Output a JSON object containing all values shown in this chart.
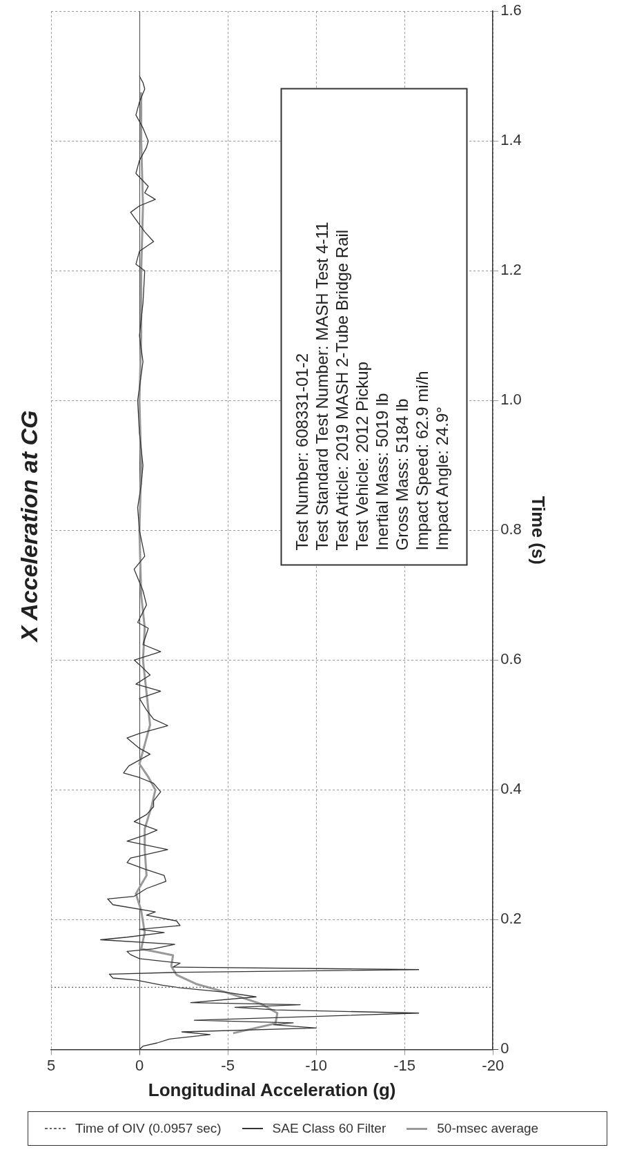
{
  "chart_data": {
    "type": "line",
    "title": "X Acceleration at CG",
    "xlabel": "Longitudinal Acceleration (g)",
    "ylabel": "Time (s)",
    "ylim": [
      0,
      1.6
    ],
    "yticks": [
      0,
      0.2,
      0.4,
      0.6,
      0.8,
      {
        "value": 1,
        "label": "1.0"
      },
      1.2,
      1.4,
      1.6
    ],
    "xlim": [
      5,
      -20
    ],
    "xticks": [
      5,
      0,
      -5,
      -10,
      -15,
      -20
    ],
    "grid": true,
    "legend": "bottom",
    "marker": "none",
    "series": [
      {
        "name": "SAE Class 60 Filter",
        "color": "#333333",
        "line_style": "solid",
        "values": [
          0,
          0.005,
          0.01,
          0.016,
          0.023,
          0.027,
          0.033,
          0.038,
          0.041,
          0.045,
          0.056,
          0.061,
          0.065,
          0.069,
          0.072,
          0.081,
          0.088,
          0.095,
          0.099,
          0.107,
          0.11,
          0.116,
          0.119,
          0.123,
          0.127,
          0.133,
          0.14,
          0.146,
          0.151,
          0.155,
          0.162,
          0.169,
          0.173,
          0.18,
          0.185,
          0.191,
          0.198,
          0.207,
          0.212,
          0.223,
          0.232,
          0.236,
          0.248,
          0.259,
          0.268,
          0.278,
          0.288,
          0.295,
          0.308,
          0.321,
          0.331,
          0.338,
          0.351,
          0.362,
          0.374,
          0.383,
          0.397,
          0.41,
          0.419,
          0.426,
          0.437,
          0.455,
          0.464,
          0.48,
          0.487,
          0.499,
          0.509,
          0.523,
          0.541,
          0.552,
          0.563,
          0.577,
          0.593,
          0.6,
          0.613,
          0.624,
          0.649,
          0.658,
          0.685,
          0.707,
          0.74,
          0.76,
          0.8,
          0.835,
          0.87,
          0.9,
          0.95,
          1.0,
          1.06,
          1.1,
          1.15,
          1.2,
          1.21,
          1.23,
          1.245,
          1.26,
          1.29,
          1.3,
          1.31,
          1.32,
          1.33,
          1.35,
          1.37,
          1.39,
          1.4,
          1.42,
          1.44,
          1.46,
          1.48,
          1.49,
          1.5
        ],
        "x": [
          0,
          -0.2,
          -1.0,
          -1.7,
          -4.0,
          -2.4,
          -10.0,
          -7.6,
          -8.7,
          -3.1,
          -15.8,
          -7.7,
          -5.4,
          -9.1,
          -2.9,
          -6.6,
          -4.9,
          -2.3,
          -1.3,
          0.2,
          1.5,
          1.7,
          -2.4,
          -15.8,
          -1.9,
          -2.3,
          0,
          0.5,
          0.7,
          -0.8,
          -2.0,
          2.2,
          0.7,
          -1.4,
          0,
          -2.3,
          -2.1,
          -0.4,
          -0.9,
          1.5,
          1.8,
          0.3,
          -0.4,
          -1.5,
          -1.4,
          -0.3,
          0.7,
          0.5,
          -1.6,
          0.7,
          -0.4,
          -1.0,
          0.3,
          -0.4,
          -0.8,
          -0.8,
          -1.2,
          -0.8,
          0,
          0.9,
          0.6,
          -0.6,
          0,
          0.7,
          0,
          -1.6,
          -0.8,
          -0.4,
          0,
          -1.2,
          0.2,
          -0.6,
          0,
          0.3,
          -1.2,
          -0.2,
          -0.5,
          0.1,
          -0.4,
          -0.2,
          0.3,
          -0.3,
          0,
          0.1,
          -0.1,
          -0.2,
          0,
          0.1,
          -0.2,
          0,
          -0.2,
          -0.3,
          0.2,
          0,
          -0.8,
          -0.3,
          0.5,
          0,
          -0.9,
          -0.3,
          -0.5,
          0.2,
          0,
          -0.4,
          -0.5,
          -0.2,
          0.2,
          0,
          -0.3,
          -0.2,
          0
        ]
      },
      {
        "name": "50-msec average",
        "color": "#999999",
        "line_style": "solid",
        "values": [
          0.025,
          0.04,
          0.056,
          0.07,
          0.088,
          0.101,
          0.115,
          0.128,
          0.145,
          0.155,
          0.18,
          0.214,
          0.24,
          0.268,
          0.308,
          0.34,
          0.376,
          0.4,
          0.42,
          0.44,
          0.47,
          0.5,
          0.55,
          0.6,
          0.65,
          0.7,
          0.8,
          0.9,
          1.0,
          1.1,
          1.2,
          1.3,
          1.4,
          1.475
        ],
        "x": [
          -5.3,
          -7.7,
          -7.8,
          -6.9,
          -4.9,
          -3.2,
          -2.1,
          -1.8,
          -1.9,
          -0.1,
          -0.3,
          -0.1,
          0.2,
          -0.4,
          -0.3,
          -0.3,
          -0.7,
          -0.9,
          -0.5,
          0,
          -0.3,
          -0.6,
          -0.4,
          -0.2,
          -0.3,
          -0.1,
          0,
          -0.1,
          0,
          -0.1,
          -0.1,
          -0.2,
          -0.1,
          -0.1
        ]
      }
    ],
    "ref_lines": [
      {
        "axis": "y",
        "value": 0.0957,
        "label": "Time of OIV (0.0957 sec)",
        "color": "#666666",
        "line_style": "dotted"
      }
    ],
    "annotations": [
      "Test Number:  608331-01-2",
      "Test Standard Test Number:  MASH Test 4-11",
      "Test Article:  2019 MASH 2-Tube Bridge Rail",
      "Test Vehicle:  2012 Pickup",
      "Inertial Mass:  5019 lb",
      "Gross Mass:  5184 lb",
      "Impact Speed:  62.9 mi/h",
      "Impact Angle:  24.9°"
    ]
  }
}
